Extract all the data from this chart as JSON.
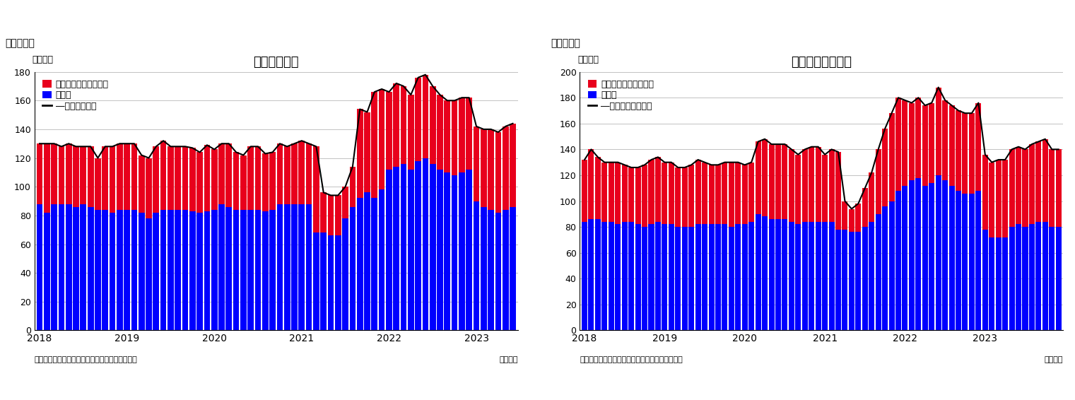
{
  "chart1": {
    "title": "住宅着工件数",
    "suptitle": "（図表１）",
    "ylabel": "（万件）",
    "source": "（資料）センサス局よりニッセイ基礎研究所作成",
    "xlabel_note": "（月次）",
    "legend1": "集合住宅（二戸以上）",
    "legend2": "戸建て",
    "legend3": "―住宅着工件数",
    "ylim": [
      0,
      180
    ],
    "yticks": [
      0,
      20,
      40,
      60,
      80,
      100,
      120,
      140,
      160,
      180
    ],
    "bar_color_red": "#e8001c",
    "bar_color_blue": "#0000ff",
    "line_color": "#000000",
    "detached": [
      88,
      82,
      88,
      88,
      88,
      86,
      88,
      86,
      84,
      84,
      82,
      84,
      84,
      84,
      82,
      78,
      82,
      84,
      84,
      84,
      84,
      83,
      82,
      83,
      84,
      88,
      86,
      84,
      84,
      84,
      84,
      83,
      84,
      88,
      88,
      88,
      88,
      88,
      68,
      68,
      66,
      66,
      78,
      86,
      92,
      96,
      92,
      98,
      112,
      114,
      116,
      112,
      118,
      120,
      116,
      112,
      110,
      108,
      110,
      112,
      90,
      86,
      84,
      82,
      84,
      86
    ],
    "collective": [
      42,
      48,
      42,
      40,
      42,
      42,
      40,
      42,
      36,
      44,
      46,
      46,
      46,
      46,
      40,
      42,
      46,
      48,
      44,
      44,
      44,
      44,
      42,
      46,
      42,
      42,
      44,
      40,
      38,
      44,
      44,
      40,
      40,
      42,
      40,
      42,
      44,
      42,
      60,
      28,
      28,
      28,
      22,
      28,
      62,
      56,
      74,
      70,
      54,
      58,
      54,
      52,
      58,
      58,
      54,
      52,
      50,
      52,
      52,
      50,
      52,
      54,
      56,
      56,
      58,
      58
    ]
  },
  "chart2": {
    "title": "住宅着工許可件数",
    "suptitle": "（図表２）",
    "ylabel": "（万件）",
    "source": "（資料）センサス局よりニッセイ基礎研究所作成",
    "xlabel_note": "（月次）",
    "legend1": "集合住宅（二戸以上）",
    "legend2": "戸建て",
    "legend3": "―住宅建築許可件数",
    "ylim": [
      0,
      200
    ],
    "yticks": [
      0,
      20,
      40,
      60,
      80,
      100,
      120,
      140,
      160,
      180,
      200
    ],
    "bar_color_red": "#e8001c",
    "bar_color_blue": "#0000ff",
    "line_color": "#000000",
    "detached": [
      84,
      86,
      86,
      84,
      84,
      82,
      84,
      84,
      82,
      80,
      82,
      84,
      82,
      82,
      80,
      80,
      80,
      82,
      82,
      82,
      82,
      82,
      80,
      82,
      82,
      84,
      90,
      88,
      86,
      86,
      86,
      84,
      82,
      84,
      84,
      84,
      84,
      84,
      78,
      78,
      76,
      76,
      80,
      84,
      90,
      96,
      100,
      108,
      112,
      116,
      118,
      112,
      114,
      120,
      116,
      112,
      108,
      106,
      106,
      108,
      78,
      72,
      72,
      72,
      80,
      82,
      80,
      82,
      84,
      84,
      80,
      80
    ],
    "collective": [
      48,
      54,
      48,
      46,
      46,
      48,
      44,
      42,
      44,
      48,
      50,
      50,
      48,
      48,
      46,
      46,
      48,
      50,
      48,
      46,
      46,
      48,
      50,
      48,
      46,
      46,
      56,
      60,
      58,
      58,
      58,
      56,
      54,
      56,
      58,
      58,
      52,
      56,
      60,
      22,
      18,
      22,
      30,
      38,
      50,
      60,
      68,
      72,
      66,
      60,
      62,
      62,
      62,
      68,
      62,
      62,
      62,
      62,
      62,
      68,
      58,
      58,
      60,
      60,
      60,
      60,
      60,
      62,
      62,
      64,
      60,
      60
    ]
  }
}
